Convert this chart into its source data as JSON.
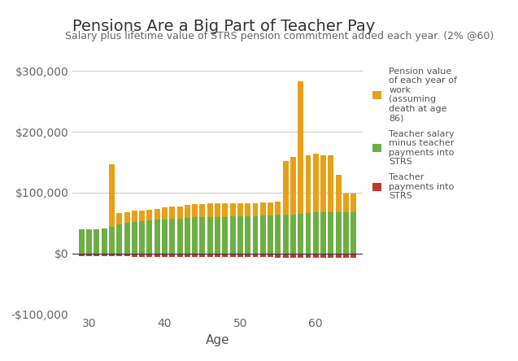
{
  "title": "Pensions Are a Big Part of Teacher Pay",
  "subtitle": "Salary plus lifetime value of STRS pension commitment added each year. (2% @60)",
  "xlabel": "Age",
  "ages": [
    29,
    30,
    31,
    32,
    33,
    34,
    35,
    36,
    37,
    38,
    39,
    40,
    41,
    42,
    43,
    44,
    45,
    46,
    47,
    48,
    49,
    50,
    51,
    52,
    53,
    54,
    55,
    56,
    57,
    58,
    59,
    60,
    61,
    62,
    63,
    64,
    65
  ],
  "pension_value": [
    0,
    0,
    0,
    0,
    103000,
    18000,
    18000,
    18000,
    18000,
    18000,
    18000,
    20000,
    20000,
    20000,
    22000,
    22000,
    22000,
    22000,
    22000,
    22000,
    22000,
    22000,
    22000,
    22000,
    22000,
    22000,
    22000,
    88000,
    95000,
    218000,
    95000,
    97000,
    95000,
    95000,
    62000,
    32000,
    32000
  ],
  "salary_minus": [
    40000,
    40000,
    40000,
    41000,
    43000,
    48000,
    50000,
    52000,
    53000,
    54000,
    55000,
    56000,
    57000,
    57000,
    58000,
    59000,
    59000,
    60000,
    60000,
    60000,
    61000,
    61000,
    61000,
    61000,
    62000,
    62000,
    63000,
    64000,
    64000,
    65000,
    66000,
    67000,
    67000,
    67000,
    67000,
    67000,
    67000
  ],
  "teacher_payments": [
    -4000,
    -4000,
    -4000,
    -4500,
    -4500,
    -5000,
    -5200,
    -5400,
    -5600,
    -5700,
    -5800,
    -6000,
    -6000,
    -6200,
    -6200,
    -6300,
    -6300,
    -6400,
    -6400,
    -6400,
    -6500,
    -6500,
    -6500,
    -6500,
    -6600,
    -6600,
    -6700,
    -6700,
    -6700,
    -6800,
    -6800,
    -6900,
    -6900,
    -6900,
    -6900,
    -6900,
    -6900
  ],
  "pension_color": "#E6A118",
  "salary_color": "#6DAF45",
  "payment_color": "#C0392B",
  "background_color": "#FFFFFF",
  "grid_color": "#CCCCCC",
  "ylim_min": -100000,
  "ylim_max": 310000,
  "yticks": [
    -100000,
    0,
    100000,
    200000,
    300000
  ],
  "ytick_labels": [
    "-$100,000",
    "$0",
    "$100,000",
    "$200,000",
    "$300,000"
  ],
  "xticks": [
    30,
    40,
    50,
    60
  ],
  "legend_labels": [
    "Pension value\nof each year of\nwork\n(assuming\ndeath at age\n86)",
    "Teacher salary\nminus teacher\npayments into\nSTRS",
    "Teacher\npayments into\nSTRS"
  ],
  "title_fontsize": 14,
  "subtitle_fontsize": 9,
  "tick_fontsize": 10,
  "xlabel_fontsize": 11
}
